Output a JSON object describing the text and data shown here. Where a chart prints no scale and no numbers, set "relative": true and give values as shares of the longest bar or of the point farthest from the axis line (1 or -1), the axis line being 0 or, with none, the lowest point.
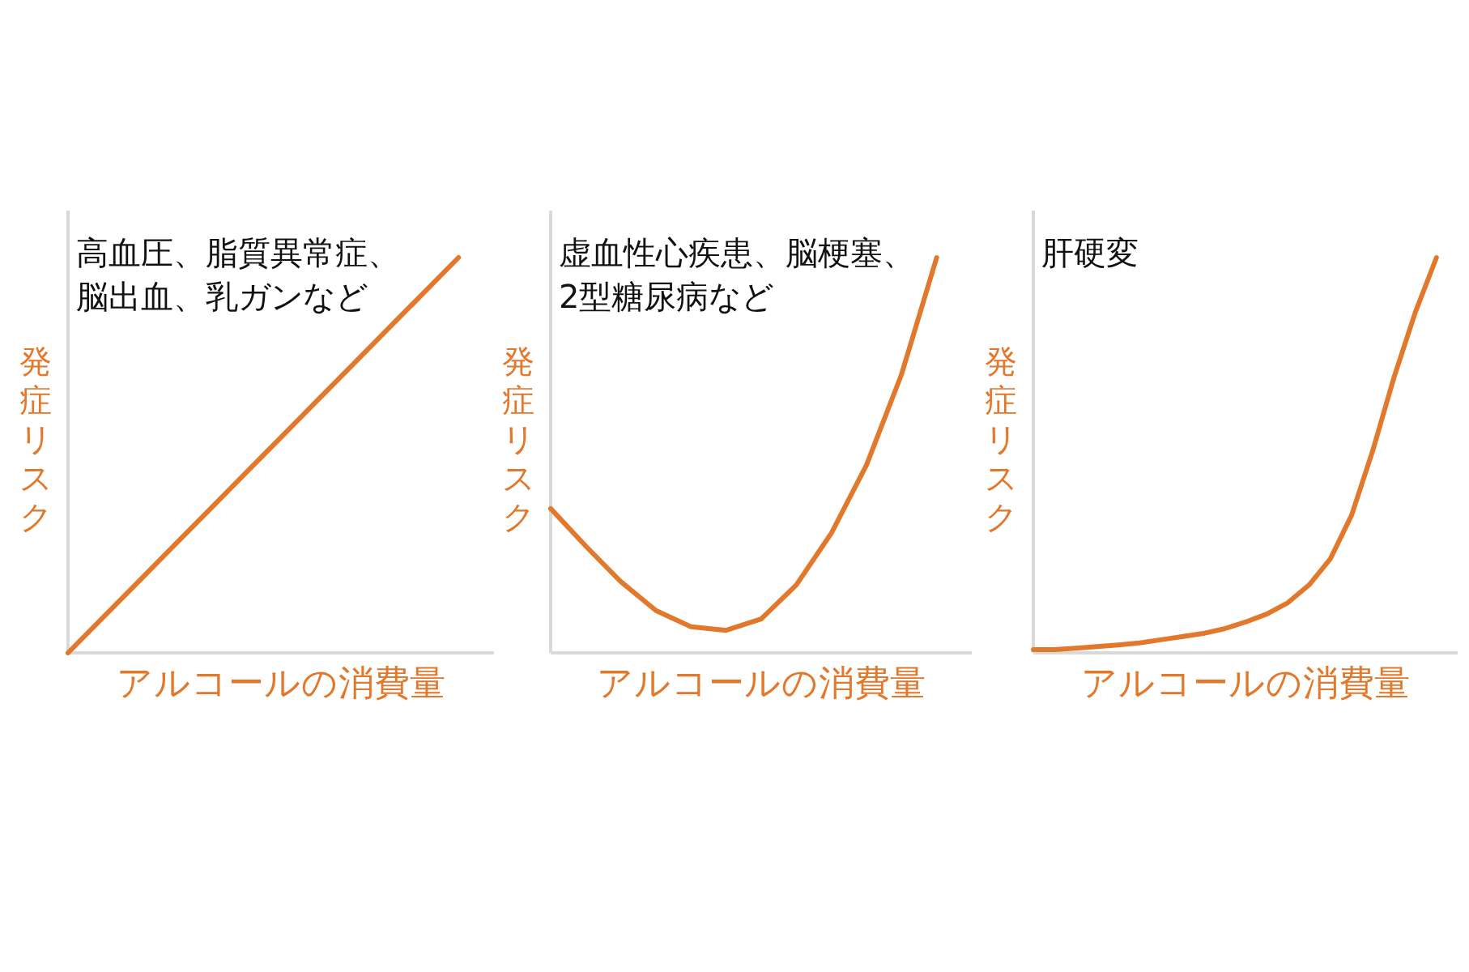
{
  "chart_data": [
    {
      "type": "line",
      "relative": true,
      "title": "高血圧、脂質異常症、脳出血、乳ガンなど",
      "xlabel": "アルコールの消費量",
      "ylabel": "発症リスク",
      "categories": [
        null,
        null,
        null,
        null,
        null,
        null,
        null,
        null,
        null,
        null,
        null,
        null,
        null
      ],
      "series": [
        {
          "color": "#e2782b",
          "values": [
            0,
            0.0909,
            0.1818,
            0.2727,
            0.3636,
            0.4545,
            0.5455,
            0.6364,
            0.7273,
            0.8182,
            0.9091,
            1,
            null
          ]
        }
      ]
    },
    {
      "type": "line",
      "relative": true,
      "title": "虚血性心疾患、脳梗塞、2型糖尿病など",
      "xlabel": "アルコールの消費量",
      "ylabel": "発症リスク",
      "categories": [
        null,
        null,
        null,
        null,
        null,
        null,
        null,
        null,
        null,
        null,
        null,
        null,
        null
      ],
      "series": [
        {
          "color": "#e2782b",
          "values": [
            0.365,
            0.27,
            0.18,
            0.107,
            0.066,
            0.057,
            0.086,
            0.172,
            0.303,
            0.475,
            0.705,
            1,
            null
          ]
        }
      ]
    },
    {
      "type": "line",
      "relative": true,
      "title": "肝硬変",
      "xlabel": "アルコールの消費量",
      "ylabel": "発症リスク",
      "categories": [
        null,
        null,
        null,
        null,
        null,
        null,
        null,
        null,
        null,
        null,
        null,
        null,
        null,
        null,
        null,
        null,
        null,
        null,
        null,
        null,
        null
      ],
      "series": [
        {
          "color": "#e2782b",
          "values": [
            0.008,
            0.008,
            0.012,
            0.016,
            0.02,
            0.025,
            0.033,
            0.041,
            0.049,
            0.061,
            0.078,
            0.098,
            0.127,
            0.172,
            0.238,
            0.348,
            0.512,
            0.697,
            0.861,
            1,
            null
          ]
        }
      ]
    }
  ]
}
